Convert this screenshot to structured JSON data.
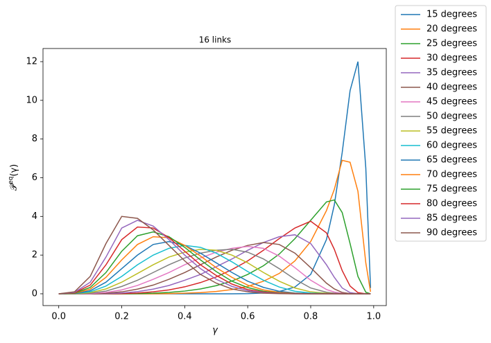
{
  "chart_data": {
    "type": "line",
    "title": "16 links",
    "xlabel": "γ",
    "ylabel": {
      "base": "𝒫",
      "superscript": "eq",
      "argument": "(γ)"
    },
    "xlim": [
      -0.05,
      1.04
    ],
    "ylim": [
      -0.61,
      12.68
    ],
    "xticks": [
      {
        "value": 0,
        "label": "0.0"
      },
      {
        "value": 0.2,
        "label": "0.2"
      },
      {
        "value": 0.4,
        "label": "0.4"
      },
      {
        "value": 0.6,
        "label": "0.6"
      },
      {
        "value": 0.8,
        "label": "0.8"
      },
      {
        "value": 1,
        "label": "1.0"
      }
    ],
    "yticks": [
      0,
      2,
      4,
      6,
      8,
      10,
      12
    ],
    "grid": false,
    "legend": "outside-right",
    "x": [
      0,
      0.05,
      0.1,
      0.15,
      0.2,
      0.25,
      0.3,
      0.35,
      0.4,
      0.45,
      0.5,
      0.55,
      0.6,
      0.65,
      0.7,
      0.75,
      0.8,
      0.85,
      0.875,
      0.9,
      0.925,
      0.95,
      0.975,
      0.99
    ],
    "series": [
      {
        "name": "15 degrees",
        "color": "#1f77b4",
        "values": [
          0,
          0,
          0,
          0,
          0,
          0,
          0,
          0,
          0,
          0,
          0,
          0,
          0.01,
          0.04,
          0.12,
          0.35,
          1.0,
          2.8,
          4.6,
          7.3,
          10.5,
          12.0,
          6.5,
          0.3
        ]
      },
      {
        "name": "20 degrees",
        "color": "#ff7f0e",
        "values": [
          0,
          0,
          0,
          0,
          0,
          0,
          0,
          0.01,
          0.03,
          0.06,
          0.12,
          0.22,
          0.38,
          0.65,
          1.05,
          1.7,
          2.7,
          4.3,
          5.4,
          6.9,
          6.8,
          5.3,
          1.6,
          0.1
        ]
      },
      {
        "name": "25 degrees",
        "color": "#2ca02c",
        "values": [
          0,
          0,
          0,
          0,
          0,
          0.01,
          0.03,
          0.07,
          0.14,
          0.25,
          0.42,
          0.66,
          1.0,
          1.45,
          2.05,
          2.85,
          3.8,
          4.75,
          4.85,
          4.2,
          2.6,
          0.9,
          0.08,
          0
        ]
      },
      {
        "name": "30 degrees",
        "color": "#d62728",
        "values": [
          0,
          0,
          0,
          0,
          0.01,
          0.04,
          0.1,
          0.2,
          0.36,
          0.58,
          0.87,
          1.25,
          1.7,
          2.25,
          2.85,
          3.4,
          3.75,
          3.15,
          2.3,
          1.2,
          0.4,
          0.06,
          0,
          0
        ]
      },
      {
        "name": "35 degrees",
        "color": "#9467bd",
        "values": [
          0,
          0,
          0,
          0.01,
          0.04,
          0.11,
          0.24,
          0.43,
          0.7,
          1.0,
          1.4,
          1.8,
          2.25,
          2.65,
          2.95,
          3.05,
          2.6,
          1.5,
          0.85,
          0.3,
          0.06,
          0.01,
          0,
          0
        ]
      },
      {
        "name": "40 degrees",
        "color": "#8c564b",
        "values": [
          0,
          0,
          0,
          0.03,
          0.1,
          0.24,
          0.45,
          0.75,
          1.1,
          1.5,
          1.9,
          2.25,
          2.5,
          2.65,
          2.55,
          2.1,
          1.35,
          0.55,
          0.25,
          0.07,
          0.01,
          0,
          0,
          0
        ]
      },
      {
        "name": "45 degrees",
        "color": "#e377c2",
        "values": [
          0,
          0,
          0.01,
          0.07,
          0.2,
          0.43,
          0.75,
          1.1,
          1.5,
          1.85,
          2.15,
          2.35,
          2.45,
          2.35,
          1.95,
          1.35,
          0.7,
          0.22,
          0.09,
          0.02,
          0,
          0,
          0,
          0
        ]
      },
      {
        "name": "50 degrees",
        "color": "#7f7f7f",
        "values": [
          0,
          0,
          0.03,
          0.14,
          0.38,
          0.7,
          1.1,
          1.5,
          1.85,
          2.1,
          2.25,
          2.3,
          2.15,
          1.8,
          1.3,
          0.75,
          0.3,
          0.08,
          0.03,
          0.01,
          0,
          0,
          0,
          0
        ]
      },
      {
        "name": "55 degrees",
        "color": "#bcbd22",
        "values": [
          0,
          0,
          0.06,
          0.25,
          0.6,
          1.05,
          1.5,
          1.9,
          2.15,
          2.3,
          2.25,
          2.0,
          1.6,
          1.1,
          0.65,
          0.3,
          0.1,
          0.03,
          0.01,
          0,
          0,
          0,
          0,
          0
        ]
      },
      {
        "name": "60 degrees",
        "color": "#17becf",
        "values": [
          0,
          0.01,
          0.1,
          0.4,
          0.9,
          1.5,
          2.0,
          2.35,
          2.5,
          2.4,
          2.1,
          1.65,
          1.15,
          0.7,
          0.35,
          0.13,
          0.04,
          0.01,
          0,
          0,
          0,
          0,
          0,
          0
        ]
      },
      {
        "name": "65 degrees",
        "color": "#1f77b4",
        "values": [
          0,
          0.01,
          0.16,
          0.6,
          1.3,
          2.0,
          2.55,
          2.7,
          2.5,
          2.1,
          1.6,
          1.1,
          0.65,
          0.33,
          0.13,
          0.04,
          0.01,
          0,
          0,
          0,
          0,
          0,
          0,
          0
        ]
      },
      {
        "name": "70 degrees",
        "color": "#ff7f0e",
        "values": [
          0,
          0.02,
          0.24,
          0.85,
          1.75,
          2.55,
          2.95,
          2.9,
          2.5,
          1.95,
          1.35,
          0.85,
          0.45,
          0.2,
          0.07,
          0.02,
          0,
          0,
          0,
          0,
          0,
          0,
          0,
          0
        ]
      },
      {
        "name": "75 degrees",
        "color": "#2ca02c",
        "values": [
          0,
          0.03,
          0.33,
          1.1,
          2.2,
          3.0,
          3.2,
          2.95,
          2.4,
          1.75,
          1.15,
          0.65,
          0.32,
          0.13,
          0.04,
          0.01,
          0,
          0,
          0,
          0,
          0,
          0,
          0,
          0
        ]
      },
      {
        "name": "80 degrees",
        "color": "#d62728",
        "values": [
          0,
          0.05,
          0.45,
          1.5,
          2.8,
          3.45,
          3.4,
          2.9,
          2.2,
          1.5,
          0.95,
          0.5,
          0.22,
          0.09,
          0.03,
          0.01,
          0,
          0,
          0,
          0,
          0,
          0,
          0,
          0
        ]
      },
      {
        "name": "85 degrees",
        "color": "#9467bd",
        "values": [
          0,
          0.07,
          0.6,
          1.9,
          3.4,
          3.8,
          3.5,
          2.8,
          2.0,
          1.3,
          0.75,
          0.38,
          0.16,
          0.06,
          0.02,
          0,
          0,
          0,
          0,
          0,
          0,
          0,
          0,
          0
        ]
      },
      {
        "name": "90 degrees",
        "color": "#8c564b",
        "values": [
          0,
          0.1,
          0.9,
          2.6,
          4.0,
          3.9,
          3.3,
          2.5,
          1.7,
          1.0,
          0.55,
          0.25,
          0.1,
          0.03,
          0.01,
          0,
          0,
          0,
          0,
          0,
          0,
          0,
          0,
          0
        ]
      }
    ]
  }
}
